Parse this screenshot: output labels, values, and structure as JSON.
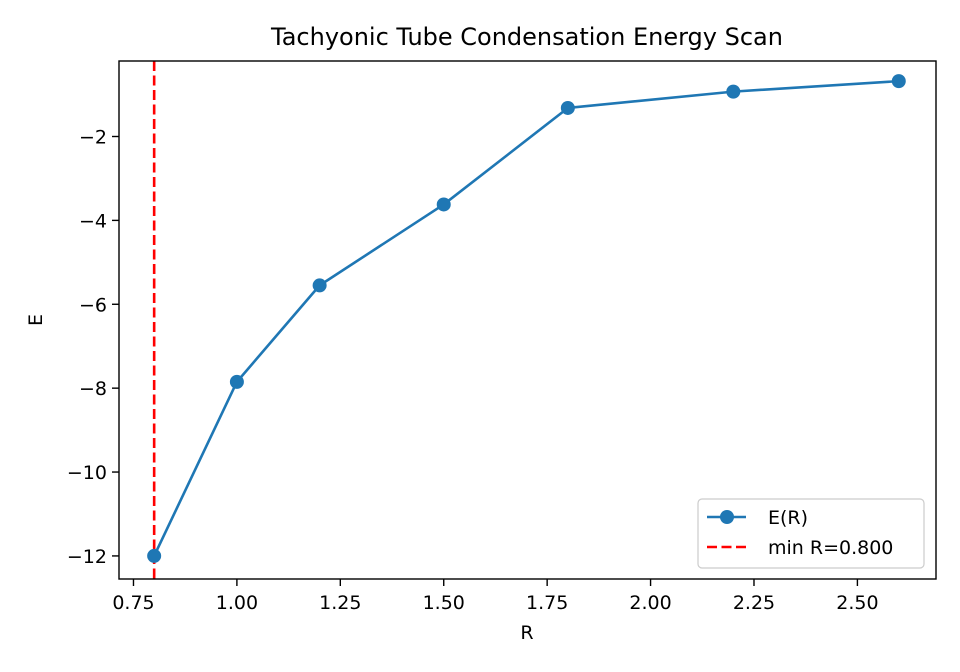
{
  "chart_data": {
    "type": "line",
    "title": "Tachyonic Tube Condensation Energy Scan",
    "xlabel": "R",
    "ylabel": "E",
    "xlim": [
      0.715,
      2.69
    ],
    "ylim": [
      -12.55,
      -0.2
    ],
    "xticks": [
      0.75,
      1.0,
      1.25,
      1.5,
      1.75,
      2.0,
      2.25,
      2.5
    ],
    "xtick_labels": [
      "0.75",
      "1.00",
      "1.25",
      "1.50",
      "1.75",
      "2.00",
      "2.25",
      "2.50"
    ],
    "yticks": [
      -12,
      -10,
      -8,
      -6,
      -4,
      -2
    ],
    "ytick_labels": [
      "−12",
      "−10",
      "−8",
      "−6",
      "−4",
      "−2"
    ],
    "grid": false,
    "legend_position": "lower-right",
    "series": [
      {
        "name": "E(R)",
        "style": "line-with-markers",
        "color": "#1f77b4",
        "x": [
          0.8,
          1.0,
          1.2,
          1.5,
          1.8,
          2.2,
          2.6
        ],
        "y": [
          -12.0,
          -7.85,
          -5.55,
          -3.62,
          -1.32,
          -0.93,
          -0.68
        ]
      }
    ],
    "reference_lines": [
      {
        "name": "min R=0.800",
        "orientation": "vertical",
        "x": 0.8,
        "style": "dashed",
        "color": "#ff0000"
      }
    ]
  }
}
